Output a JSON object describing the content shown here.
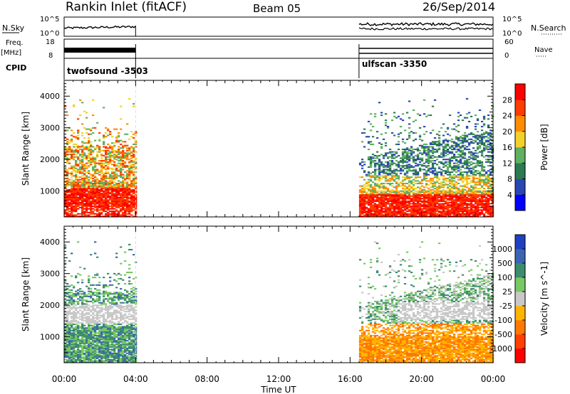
{
  "header": {
    "station": "Rankin Inlet (fitACF)",
    "beam": "Beam 05",
    "date": "26/Sep/2014"
  },
  "left_labels": {
    "nsky": "N.Sky",
    "freq": "Freq.",
    "freq_unit": "[MHz]",
    "cpid": "CPID"
  },
  "right_labels": {
    "nsearch": "N.Search",
    "nave": "Nave"
  },
  "top_ticks": {
    "nsky_top": "10^5",
    "nsky_bottom": "10^0",
    "freq_top": "18",
    "freq_bottom": "8",
    "nave_top": "60",
    "nave_bottom": "0"
  },
  "cpid_modes": [
    {
      "label": "twofsound -3503",
      "start_hour": 0,
      "end_hour": 4
    },
    {
      "label": "ulfscan -3350",
      "start_hour": 16.5,
      "end_hour": 24
    }
  ],
  "chart_data": [
    {
      "type": "heatmap",
      "quantity": "power",
      "ylabel": "Slant Range [km]",
      "xlabel": "Time UT",
      "x_ticks": [
        "00:00",
        "04:00",
        "08:00",
        "12:00",
        "16:00",
        "20:00",
        "00:00"
      ],
      "x_range_hours": [
        0,
        24
      ],
      "y_ticks": [
        1000,
        2000,
        3000,
        4000
      ],
      "ylim": [
        180,
        4500
      ],
      "colorbar": {
        "label": "Power [dB]",
        "ticks": [
          4,
          8,
          12,
          16,
          20,
          24,
          28
        ],
        "range": [
          0,
          32
        ],
        "colors": [
          "#0000ff",
          "#2a46b4",
          "#2c7a50",
          "#5fb060",
          "#f2d22a",
          "#ff8c00",
          "#ff3c00",
          "#ff0000"
        ]
      },
      "data_intervals_hours": [
        [
          0,
          4
        ],
        [
          16.5,
          24
        ]
      ]
    },
    {
      "type": "heatmap",
      "quantity": "velocity",
      "ylabel": "Slant Range [km]",
      "xlabel": "Time UT",
      "x_ticks": [
        "00:00",
        "04:00",
        "08:00",
        "12:00",
        "16:00",
        "20:00",
        "00:00"
      ],
      "x_range_hours": [
        0,
        24
      ],
      "y_ticks": [
        1000,
        2000,
        3000,
        4000
      ],
      "ylim": [
        180,
        4500
      ],
      "colorbar": {
        "label": "Velocity [m s^-1]",
        "ticks": [
          "1000",
          "500",
          "100",
          "25",
          "-25",
          "-100",
          "-500",
          "-1000"
        ],
        "colors": [
          "#2040c0",
          "#3c64b4",
          "#3c8c6e",
          "#78c864",
          "#c8c8c8",
          "#ffb400",
          "#ff7800",
          "#ff4000",
          "#ff0000"
        ]
      },
      "data_intervals_hours": [
        [
          0,
          4
        ],
        [
          16.5,
          24
        ]
      ]
    }
  ]
}
